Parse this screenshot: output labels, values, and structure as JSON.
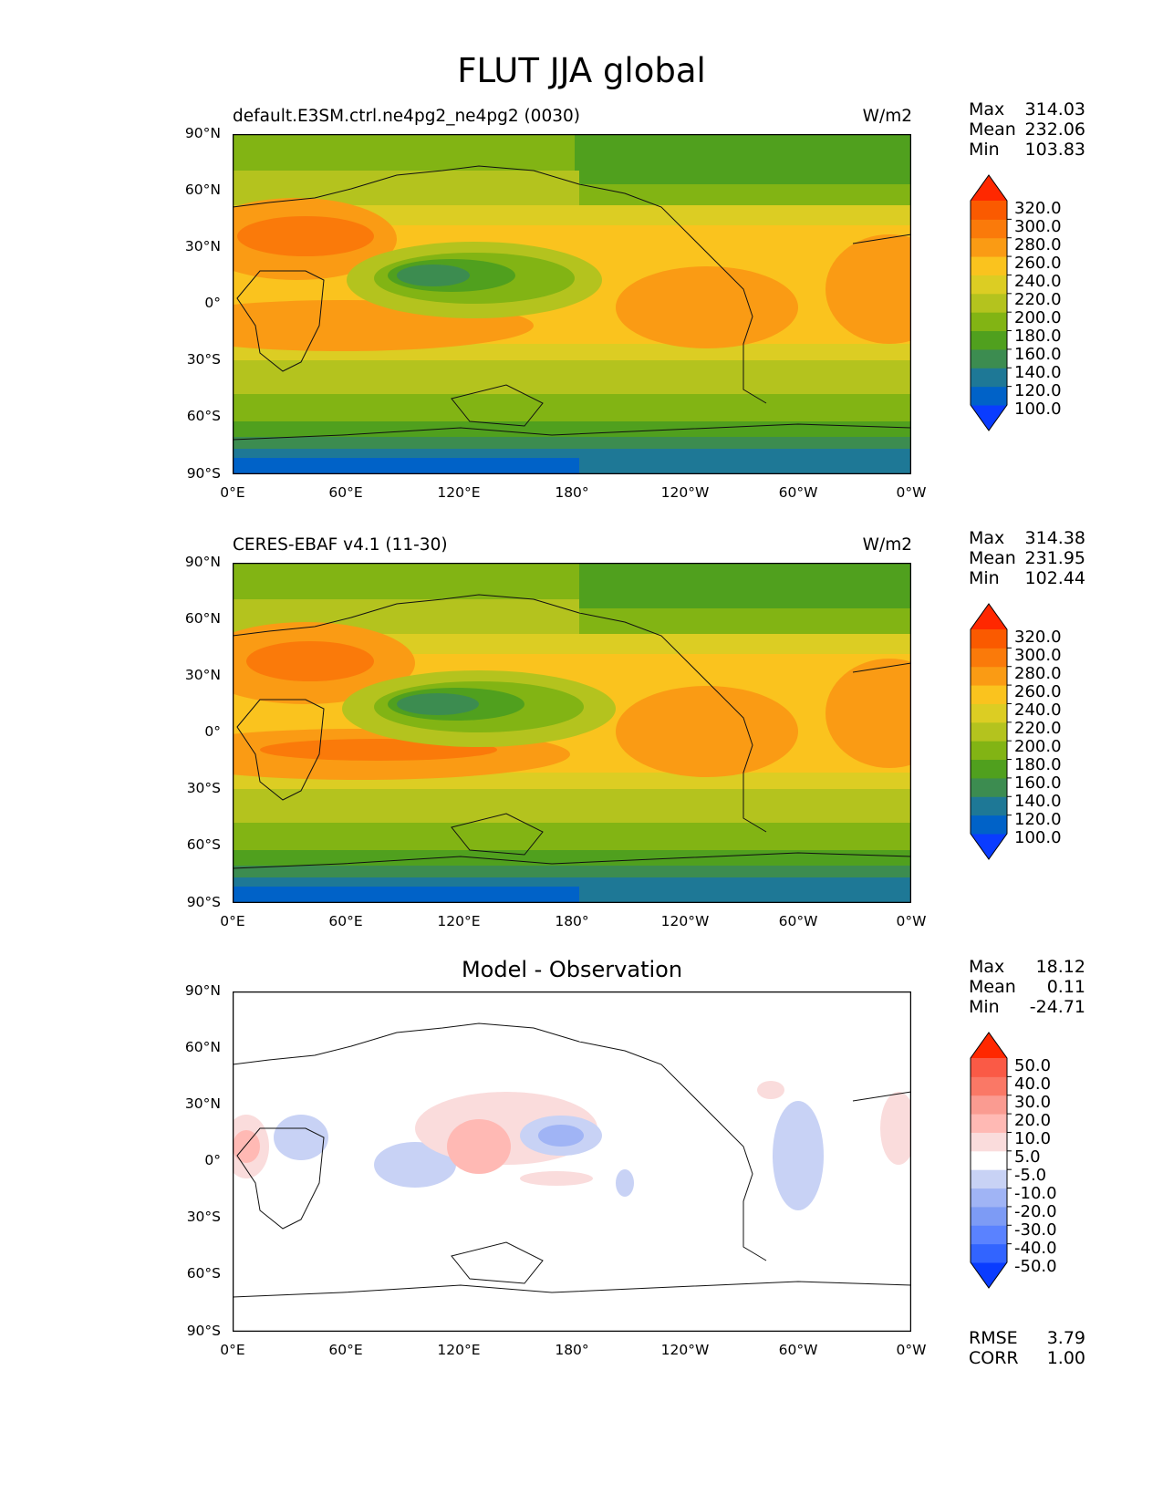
{
  "title": "FLUT JJA global",
  "axes": {
    "lat_labels": [
      "90°N",
      "60°N",
      "30°N",
      "0°",
      "30°S",
      "60°S",
      "90°S"
    ],
    "lon_labels": [
      "0°E",
      "60°E",
      "120°E",
      "180°",
      "120°W",
      "60°W",
      "0°W"
    ]
  },
  "panels": [
    {
      "subtitle_left": "default.E3SM.ctrl.ne4pg2_ne4pg2 (0030)",
      "subtitle_right": "W/m2",
      "stats": {
        "max_label": "Max",
        "max": "314.03",
        "mean_label": "Mean",
        "mean": "232.06",
        "min_label": "Min",
        "min": "103.83"
      },
      "colorbar_labels": [
        "320.0",
        "300.0",
        "280.0",
        "260.0",
        "240.0",
        "220.0",
        "200.0",
        "180.0",
        "160.0",
        "140.0",
        "120.0",
        "100.0"
      ]
    },
    {
      "subtitle_left": "CERES-EBAF v4.1 (11-30)",
      "subtitle_right": "W/m2",
      "stats": {
        "max_label": "Max",
        "max": "314.38",
        "mean_label": "Mean",
        "mean": "231.95",
        "min_label": "Min",
        "min": "102.44"
      },
      "colorbar_labels": [
        "320.0",
        "300.0",
        "280.0",
        "260.0",
        "240.0",
        "220.0",
        "200.0",
        "180.0",
        "160.0",
        "140.0",
        "120.0",
        "100.0"
      ]
    },
    {
      "subtitle_center": "Model - Observation",
      "stats": {
        "max_label": "Max",
        "max": "18.12",
        "mean_label": "Mean",
        "mean": "0.11",
        "min_label": "Min",
        "min": "-24.71"
      },
      "colorbar_labels": [
        "50.0",
        "40.0",
        "30.0",
        "20.0",
        "10.0",
        "5.0",
        "-5.0",
        "-10.0",
        "-20.0",
        "-30.0",
        "-40.0",
        "-50.0"
      ],
      "rmse_label": "RMSE",
      "rmse": "3.79",
      "corr_label": "CORR",
      "corr": "1.00"
    }
  ],
  "colors": {
    "abs_scale": [
      "#0a3cff",
      "#0062c8",
      "#1e7896",
      "#3c8c50",
      "#50a01e",
      "#82b414",
      "#b4c31e",
      "#dccd23",
      "#fac31e",
      "#fa9b14",
      "#fa7a0a",
      "#fa5a00",
      "#ff2800"
    ],
    "diff_scale": [
      "#0a3cff",
      "#3264ff",
      "#5a82ff",
      "#7d9bf5",
      "#a0b4f5",
      "#c8d2f5",
      "#ffffff",
      "#fadcdc",
      "#ffb9b4",
      "#fa9b91",
      "#fa7866",
      "#fa5a46",
      "#ff2800"
    ]
  }
}
